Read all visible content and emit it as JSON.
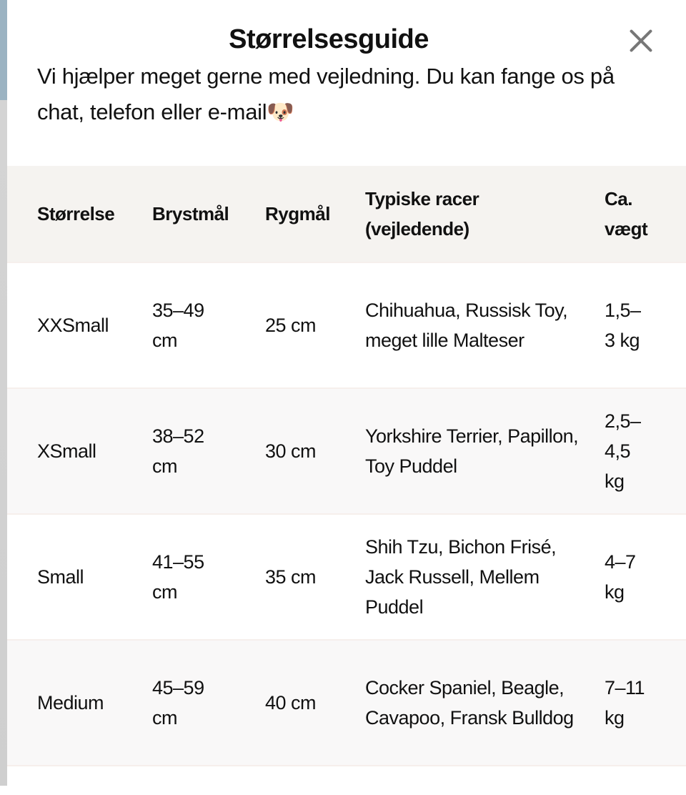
{
  "modal": {
    "title": "Størrelsesguide",
    "intro": "Vi hjælper meget gerne med vejledning. Du kan fange os på chat, telefon eller e-mail🐶",
    "close_icon": "close-x-icon"
  },
  "table": {
    "headers": [
      "Størrelse",
      "Brystmål",
      "Rygmål",
      "Typiske racer (vejledende)",
      "Ca. vægt"
    ],
    "rows": [
      [
        "XXSmall",
        "35–49 cm",
        "25 cm",
        "Chihuahua, Russisk Toy, meget lille Malteser",
        "1,5–3 kg"
      ],
      [
        "XSmall",
        "38–52 cm",
        "30 cm",
        "Yorkshire Terrier, Papillon, Toy Puddel",
        "2,5–4,5 kg"
      ],
      [
        "Small",
        "41–55 cm",
        "35 cm",
        "Shih Tzu, Bichon Frisé, Jack Russell, Mellem Puddel",
        "4–7 kg"
      ],
      [
        "Medium",
        "45–59 cm",
        "40 cm",
        "Cocker Spaniel, Beagle, Cavapoo, Fransk Bulldog",
        "7–11 kg"
      ]
    ]
  },
  "colors": {
    "header_bg": "#f5f3f0",
    "alt_row_bg": "#f9f8f8",
    "text": "#111111"
  }
}
